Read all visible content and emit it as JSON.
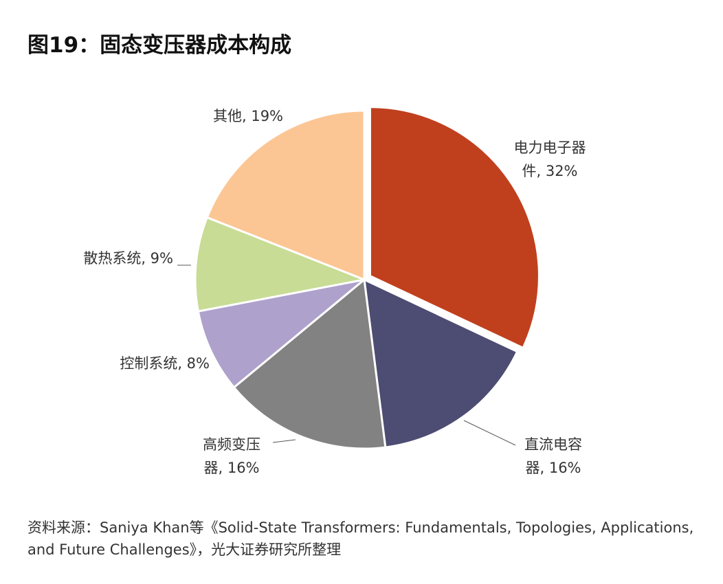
{
  "figure": {
    "title": "图19：固态变压器成本构成",
    "source": "资料来源：Saniya Khan等《Solid-State Transformers: Fundamentals, Topologies, Applications, and Future Challenges》，光大证券研究所整理"
  },
  "chart_data": {
    "type": "pie",
    "title": "图19：固态变压器成本构成",
    "start": "12 o'clock, clockwise",
    "slices": [
      {
        "key": "power-electronics",
        "label_lines": [
          "电力电子器",
          "件, 32%"
        ],
        "category": "电力电子器件",
        "value": 32,
        "color": "#c0401e"
      },
      {
        "key": "dc-capacitor",
        "label_lines": [
          "直流电容",
          "器, 16%"
        ],
        "category": "直流电容器",
        "value": 16,
        "color": "#4d4c72"
      },
      {
        "key": "hf-transformer",
        "label_lines": [
          "高频变压",
          "器, 16%"
        ],
        "category": "高频变压器",
        "value": 16,
        "color": "#828282"
      },
      {
        "key": "control-system",
        "label_lines": [
          "控制系统, 8%"
        ],
        "category": "控制系统",
        "value": 8,
        "color": "#aea1cc"
      },
      {
        "key": "cooling-system",
        "label_lines": [
          "散热系统, 9%"
        ],
        "category": "散热系统",
        "value": 9,
        "color": "#c8dc95"
      },
      {
        "key": "other",
        "label_lines": [
          "其他, 19%"
        ],
        "category": "其他",
        "value": 19,
        "color": "#fbc694"
      }
    ]
  }
}
